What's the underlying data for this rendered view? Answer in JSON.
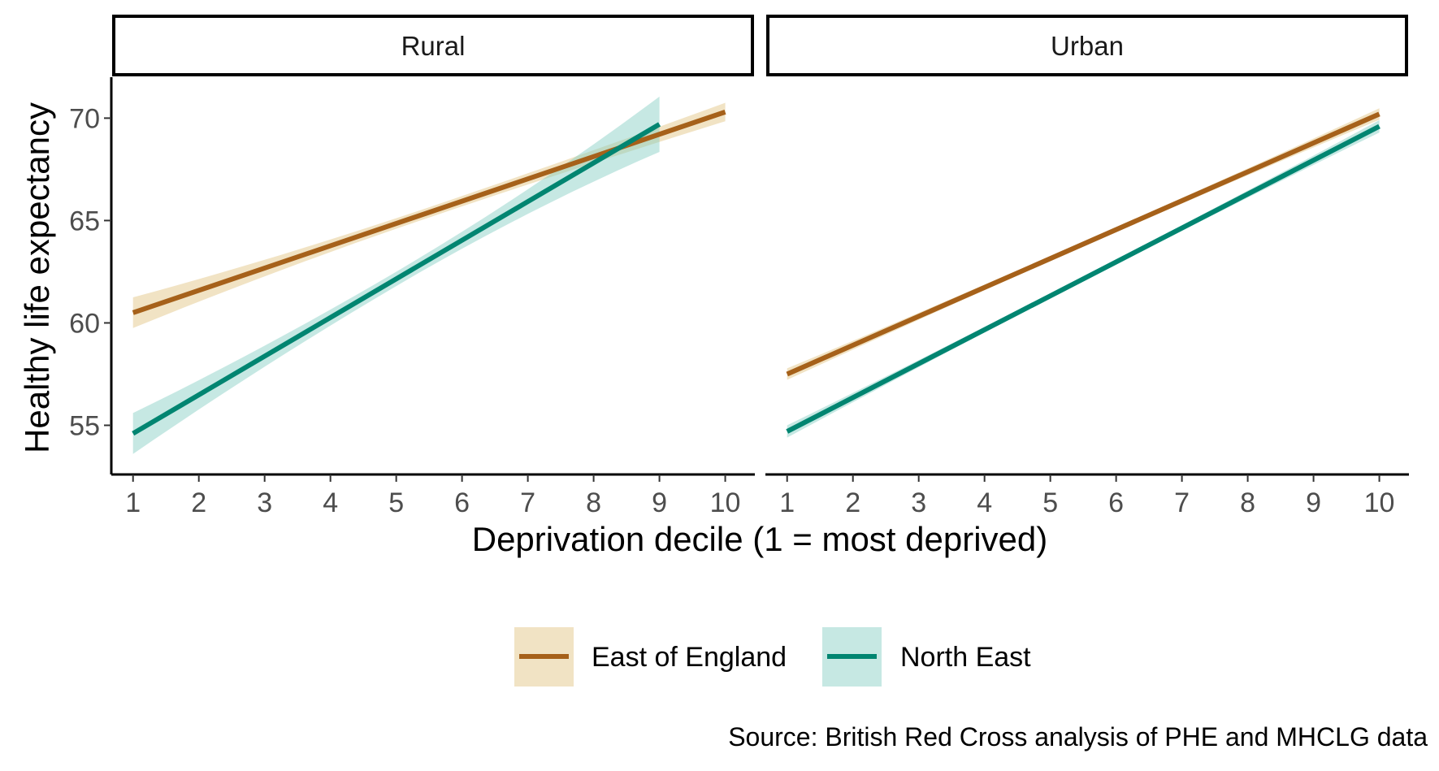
{
  "chart_data": {
    "type": "line",
    "xlabel": "Deprivation decile (1 = most deprived)",
    "ylabel": "Healthy life expectancy",
    "caption": "Source: British Red Cross analysis of PHE and MHCLG data",
    "x_ticks": [
      "1",
      "2",
      "3",
      "4",
      "5",
      "6",
      "7",
      "8",
      "9",
      "10"
    ],
    "y_ticks": [
      "55",
      "60",
      "65",
      "70"
    ],
    "xlim": [
      0.67,
      10.45
    ],
    "ylim": [
      52.6,
      72.0
    ],
    "grid": false,
    "legend_position": "bottom",
    "colors": {
      "East of England": "#a6611a",
      "North East": "#018571",
      "East of England_band": "#dfc27d",
      "North East_band": "#80cdc1"
    },
    "legend": [
      {
        "name": "East of England",
        "label": "East of England"
      },
      {
        "name": "North East",
        "label": "North East"
      }
    ],
    "panels": [
      {
        "label": "Rural",
        "series": [
          {
            "name": "East of England",
            "x_start": 1,
            "x_end": 10,
            "y_start": 60.5,
            "y_end": 70.3,
            "ci_start": 0.75,
            "ci_mid": 0.25,
            "ci_end": 0.45
          },
          {
            "name": "North East",
            "x_start": 1,
            "x_end": 9,
            "y_start": 54.6,
            "y_end": 69.7,
            "ci_start": 1.0,
            "ci_mid": 0.35,
            "ci_end": 1.35
          }
        ]
      },
      {
        "label": "Urban",
        "series": [
          {
            "name": "East of England",
            "x_start": 1,
            "x_end": 10,
            "y_start": 57.5,
            "y_end": 70.2,
            "ci_start": 0.28,
            "ci_mid": 0.12,
            "ci_end": 0.28
          },
          {
            "name": "North East",
            "x_start": 1,
            "x_end": 10,
            "y_start": 54.7,
            "y_end": 69.6,
            "ci_start": 0.3,
            "ci_mid": 0.12,
            "ci_end": 0.3
          }
        ]
      }
    ]
  }
}
